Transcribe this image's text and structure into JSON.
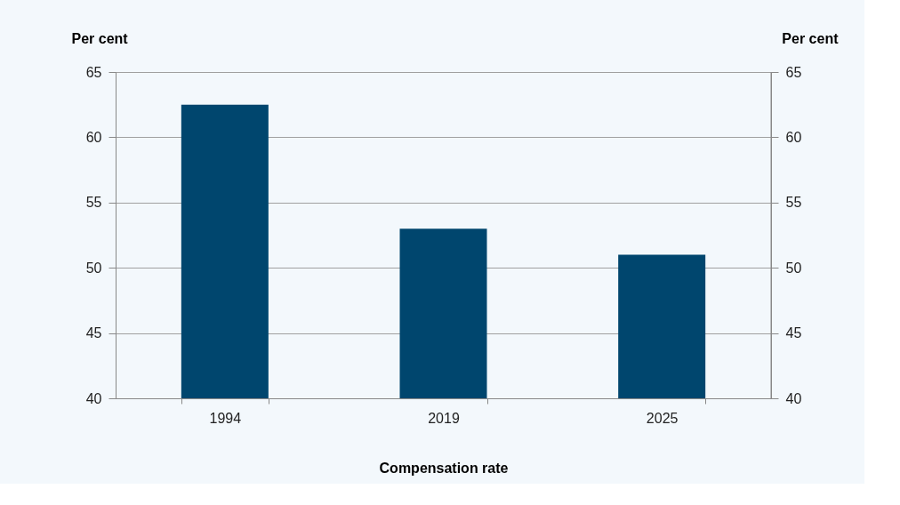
{
  "chart_data": {
    "type": "bar",
    "categories": [
      "1994",
      "2019",
      "2025"
    ],
    "values": [
      62.5,
      53,
      51
    ],
    "color": "#00466e",
    "xlabel": "Compensation rate",
    "ylabel": "Per cent",
    "y2label": "Per cent",
    "ylim": [
      40,
      65
    ],
    "yticks": [
      40,
      45,
      50,
      55,
      60,
      65
    ],
    "y2lim": [
      40,
      65
    ],
    "y2ticks": [
      40,
      45,
      50,
      55,
      60,
      65
    ],
    "grid": "y"
  }
}
